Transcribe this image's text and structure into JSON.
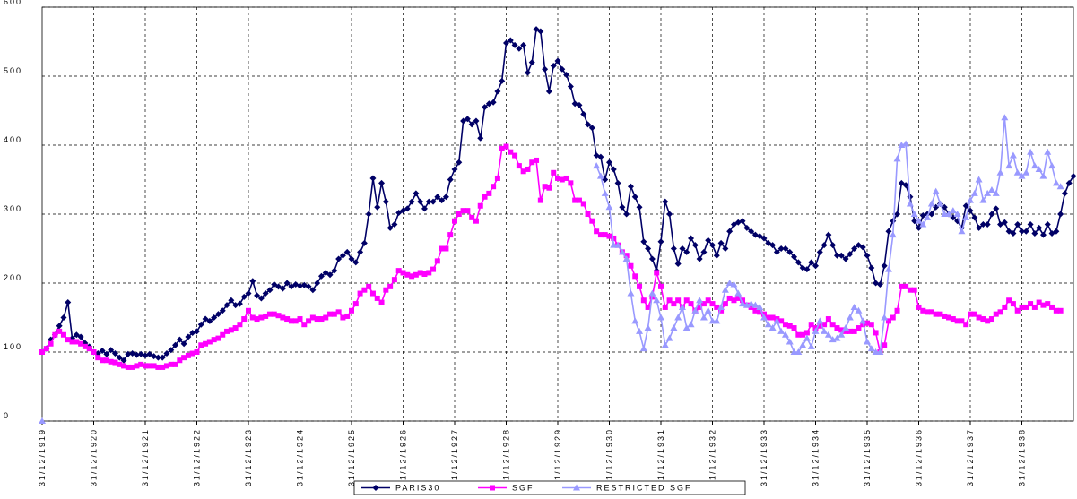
{
  "chart_data": {
    "type": "line",
    "categories": [
      "31/12/1919",
      null,
      null,
      null,
      null,
      null,
      null,
      null,
      null,
      null,
      null,
      null,
      "31/12/1920",
      null,
      null,
      null,
      null,
      null,
      null,
      null,
      null,
      null,
      null,
      null,
      "31/12/1921",
      null,
      null,
      null,
      null,
      null,
      null,
      null,
      null,
      null,
      null,
      null,
      "31/12/1922",
      null,
      null,
      null,
      null,
      null,
      null,
      null,
      null,
      null,
      null,
      null,
      "31/12/1923",
      null,
      null,
      null,
      null,
      null,
      null,
      null,
      null,
      null,
      null,
      null,
      "31/12/1924",
      null,
      null,
      null,
      null,
      null,
      null,
      null,
      null,
      null,
      null,
      null,
      "31/12/1925",
      null,
      null,
      null,
      null,
      null,
      null,
      null,
      null,
      null,
      null,
      null,
      "31/12/1926",
      null,
      null,
      null,
      null,
      null,
      null,
      null,
      null,
      null,
      null,
      null,
      "31/12/1927",
      null,
      null,
      null,
      null,
      null,
      null,
      null,
      null,
      null,
      null,
      null,
      "31/12/1928",
      null,
      null,
      null,
      null,
      null,
      null,
      null,
      null,
      null,
      null,
      null,
      "31/12/1929",
      null,
      null,
      null,
      null,
      null,
      null,
      null,
      null,
      null,
      null,
      null,
      "31/12/1930",
      null,
      null,
      null,
      null,
      null,
      null,
      null,
      null,
      null,
      null,
      null,
      "31/12/1931",
      null,
      null,
      null,
      null,
      null,
      null,
      null,
      null,
      null,
      null,
      null,
      "31/12/1932",
      null,
      null,
      null,
      null,
      null,
      null,
      null,
      null,
      null,
      null,
      null,
      "31/12/1933",
      null,
      null,
      null,
      null,
      null,
      null,
      null,
      null,
      null,
      null,
      null,
      "31/12/1934",
      null,
      null,
      null,
      null,
      null,
      null,
      null,
      null,
      null,
      null,
      null,
      "31/12/1935",
      null,
      null,
      null,
      null,
      null,
      null,
      null,
      null,
      null,
      null,
      null,
      "31/12/1936",
      null,
      null,
      null,
      null,
      null,
      null,
      null,
      null,
      null,
      null,
      null,
      "31/12/1937",
      null,
      null,
      null,
      null,
      null,
      null,
      null,
      null,
      null,
      null,
      null,
      "31/12/1938",
      null,
      null,
      null,
      null,
      null,
      null,
      null,
      null,
      null,
      null,
      null,
      null
    ],
    "series": [
      {
        "name": "PARIS30",
        "color": "#000066",
        "marker": "diamond",
        "values": [
          100,
          105,
          118,
          125,
          138,
          150,
          172,
          120,
          125,
          122,
          113,
          108,
          100,
          98,
          102,
          97,
          103,
          98,
          92,
          88,
          97,
          98,
          96,
          97,
          95,
          97,
          94,
          92,
          92,
          98,
          103,
          110,
          118,
          112,
          122,
          128,
          130,
          140,
          148,
          145,
          150,
          155,
          160,
          168,
          175,
          168,
          170,
          180,
          185,
          203,
          182,
          178,
          185,
          190,
          198,
          195,
          192,
          200,
          195,
          198,
          196,
          197,
          195,
          190,
          200,
          210,
          215,
          212,
          218,
          235,
          240,
          245,
          235,
          230,
          245,
          258,
          300,
          352,
          310,
          345,
          318,
          280,
          285,
          302,
          305,
          308,
          318,
          330,
          318,
          308,
          318,
          318,
          325,
          320,
          325,
          350,
          365,
          375,
          435,
          438,
          430,
          435,
          410,
          455,
          460,
          462,
          478,
          493,
          548,
          552,
          545,
          540,
          545,
          505,
          520,
          568,
          565,
          510,
          478,
          515,
          522,
          510,
          502,
          485,
          460,
          458,
          445,
          430,
          425,
          385,
          383,
          350,
          375,
          365,
          345,
          310,
          300,
          340,
          325,
          310,
          260,
          250,
          235,
          218,
          260,
          318,
          300,
          250,
          228,
          250,
          245,
          265,
          255,
          235,
          245,
          262,
          255,
          240,
          258,
          250,
          275,
          285,
          288,
          290,
          280,
          275,
          270,
          268,
          265,
          258,
          255,
          245,
          250,
          250,
          245,
          238,
          230,
          222,
          220,
          230,
          225,
          245,
          255,
          270,
          255,
          240,
          240,
          235,
          242,
          250,
          255,
          252,
          240,
          222,
          200,
          198,
          225,
          275,
          290,
          300,
          345,
          342,
          325,
          290,
          280,
          298,
          300,
          300,
          310,
          315,
          310,
          300,
          295,
          290,
          280,
          312,
          305,
          295,
          280,
          285,
          285,
          300,
          308,
          285,
          288,
          275,
          272,
          285,
          275,
          275,
          285,
          272,
          280,
          270,
          285,
          272,
          275,
          300,
          330,
          345,
          355
        ]
      },
      {
        "name": "SGF",
        "color": "#ff00ff",
        "marker": "square",
        "values": [
          100,
          105,
          112,
          125,
          130,
          125,
          118,
          115,
          115,
          112,
          108,
          105,
          100,
          92,
          88,
          88,
          86,
          85,
          82,
          80,
          78,
          78,
          80,
          82,
          80,
          80,
          80,
          78,
          78,
          80,
          82,
          82,
          88,
          92,
          95,
          98,
          100,
          110,
          112,
          115,
          118,
          120,
          125,
          130,
          132,
          135,
          140,
          148,
          160,
          150,
          148,
          150,
          152,
          155,
          155,
          153,
          150,
          148,
          145,
          145,
          148,
          140,
          145,
          150,
          148,
          148,
          150,
          155,
          155,
          158,
          150,
          152,
          160,
          170,
          185,
          190,
          195,
          185,
          178,
          172,
          190,
          195,
          205,
          218,
          215,
          212,
          210,
          212,
          215,
          213,
          215,
          220,
          232,
          250,
          250,
          270,
          290,
          300,
          305,
          305,
          295,
          290,
          312,
          325,
          330,
          340,
          352,
          395,
          398,
          390,
          385,
          370,
          362,
          365,
          375,
          378,
          320,
          340,
          338,
          360,
          352,
          350,
          352,
          345,
          320,
          320,
          315,
          300,
          290,
          275,
          270,
          270,
          268,
          265,
          255,
          245,
          240,
          225,
          210,
          195,
          175,
          165,
          180,
          215,
          195,
          165,
          175,
          170,
          175,
          165,
          175,
          170,
          160,
          165,
          170,
          175,
          170,
          165,
          160,
          170,
          178,
          175,
          178,
          175,
          168,
          165,
          160,
          158,
          155,
          150,
          150,
          148,
          145,
          140,
          138,
          135,
          125,
          125,
          128,
          140,
          135,
          138,
          140,
          148,
          140,
          135,
          132,
          130,
          130,
          130,
          135,
          140,
          142,
          140,
          128,
          100,
          110,
          145,
          150,
          160,
          195,
          195,
          190,
          190,
          165,
          160,
          158,
          158,
          155,
          155,
          152,
          150,
          148,
          145,
          145,
          140,
          155,
          155,
          150,
          148,
          145,
          148,
          155,
          158,
          165,
          175,
          170,
          160,
          165,
          165,
          170,
          165,
          172,
          168,
          170,
          165,
          160,
          160,
          null,
          null,
          null
        ]
      },
      {
        "name": "RESTRICTED SGF",
        "color": "#9999ff",
        "marker": "triangle",
        "values": [
          0,
          null,
          null,
          null,
          null,
          null,
          null,
          null,
          null,
          null,
          null,
          null,
          null,
          null,
          null,
          null,
          null,
          null,
          null,
          null,
          null,
          null,
          null,
          null,
          null,
          null,
          null,
          null,
          null,
          null,
          null,
          null,
          null,
          null,
          null,
          null,
          null,
          null,
          null,
          null,
          null,
          null,
          null,
          null,
          null,
          null,
          null,
          null,
          null,
          null,
          null,
          null,
          null,
          null,
          null,
          null,
          null,
          null,
          null,
          null,
          null,
          null,
          null,
          null,
          null,
          null,
          null,
          null,
          null,
          null,
          null,
          null,
          null,
          null,
          null,
          null,
          null,
          null,
          null,
          null,
          null,
          null,
          null,
          null,
          null,
          null,
          null,
          null,
          null,
          null,
          null,
          null,
          null,
          null,
          null,
          null,
          null,
          null,
          null,
          null,
          null,
          null,
          null,
          null,
          null,
          null,
          null,
          null,
          null,
          null,
          null,
          null,
          null,
          null,
          null,
          null,
          null,
          null,
          null,
          null,
          null,
          null,
          null,
          null,
          null,
          null,
          null,
          null,
          null,
          370,
          355,
          330,
          310,
          255,
          255,
          245,
          235,
          185,
          145,
          130,
          105,
          135,
          185,
          175,
          150,
          110,
          120,
          135,
          150,
          165,
          135,
          140,
          160,
          175,
          150,
          160,
          145,
          145,
          165,
          190,
          200,
          198,
          185,
          170,
          168,
          170,
          168,
          165,
          150,
          140,
          135,
          145,
          130,
          125,
          115,
          100,
          100,
          110,
          120,
          108,
          130,
          145,
          130,
          125,
          118,
          120,
          125,
          135,
          150,
          165,
          160,
          145,
          115,
          105,
          100,
          100,
          150,
          220,
          270,
          380,
          400,
          402,
          315,
          300,
          290,
          285,
          295,
          315,
          333,
          315,
          300,
          300,
          305,
          300,
          275,
          295,
          320,
          330,
          350,
          320,
          330,
          335,
          330,
          360,
          440,
          370,
          385,
          360,
          355,
          360,
          390,
          370,
          365,
          355,
          390,
          370,
          345,
          340,
          null,
          null,
          null
        ]
      }
    ],
    "ylim": [
      0,
      600
    ],
    "yticks": [
      0,
      100,
      200,
      300,
      400,
      500,
      600
    ],
    "grid": true,
    "legend": "bottom"
  }
}
